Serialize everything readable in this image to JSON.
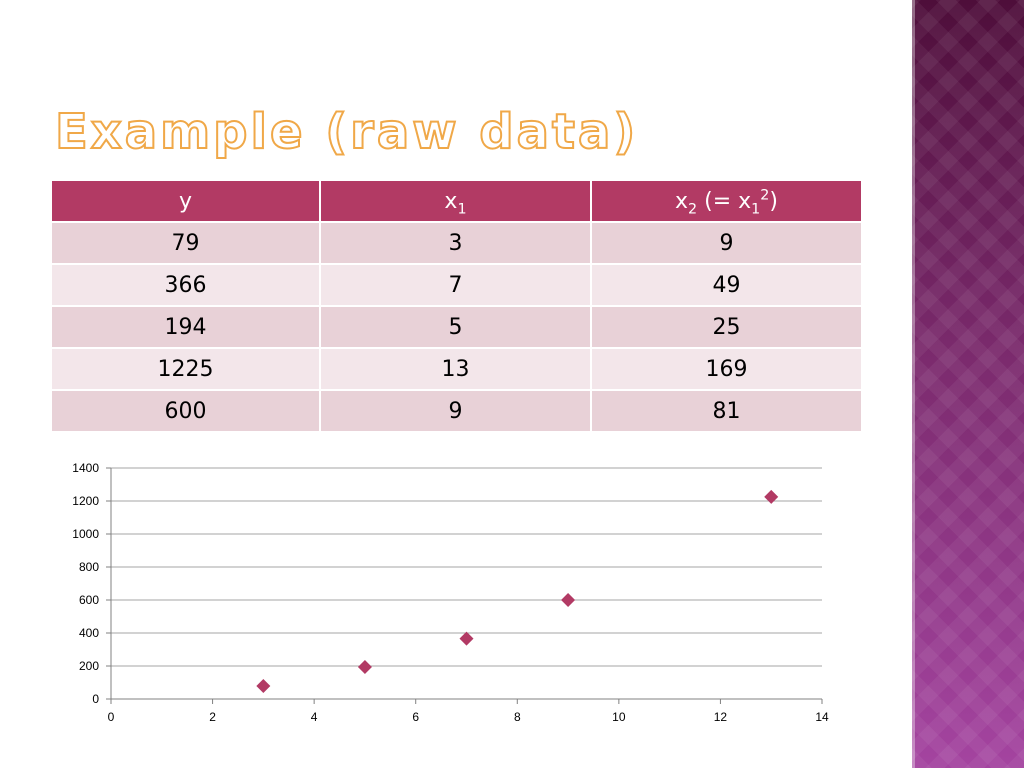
{
  "slide": {
    "title": "Example (raw data)"
  },
  "table": {
    "headers": [
      {
        "base": "y",
        "sub": "",
        "rest": ""
      },
      {
        "base": "x",
        "sub": "1",
        "rest": ""
      },
      {
        "base": "x",
        "sub": "2",
        "rest": " (= x",
        "sub2": "1",
        "sup": "2",
        "tail": ")"
      }
    ],
    "rows": [
      [
        "79",
        "3",
        "9"
      ],
      [
        "366",
        "7",
        "49"
      ],
      [
        "194",
        "5",
        "25"
      ],
      [
        "1225",
        "13",
        "169"
      ],
      [
        "600",
        "9",
        "81"
      ]
    ]
  },
  "chart_data": {
    "type": "scatter",
    "title": "",
    "xlabel": "",
    "ylabel": "",
    "xlim": [
      0,
      14
    ],
    "ylim": [
      0,
      1400
    ],
    "x_ticks": [
      "0",
      "2",
      "4",
      "6",
      "8",
      "10",
      "12",
      "14"
    ],
    "y_ticks": [
      "0",
      "200",
      "400",
      "600",
      "800",
      "1000",
      "1200",
      "1400"
    ],
    "grid": "horizontal",
    "marker": "diamond",
    "series": [
      {
        "points": [
          {
            "x": 3,
            "y": 79
          },
          {
            "x": 7,
            "y": 366
          },
          {
            "x": 5,
            "y": 194
          },
          {
            "x": 13,
            "y": 1225
          },
          {
            "x": 9,
            "y": 600
          }
        ]
      }
    ],
    "colors": {
      "marker": "#b23a64",
      "grid": "#a6a6a6",
      "axis": "#808080"
    }
  },
  "theme": {
    "header_bg": "#b23a64",
    "row_odd": "#e8d1d7",
    "row_even": "#f3e6ea",
    "title_outline": "#f0a848"
  }
}
